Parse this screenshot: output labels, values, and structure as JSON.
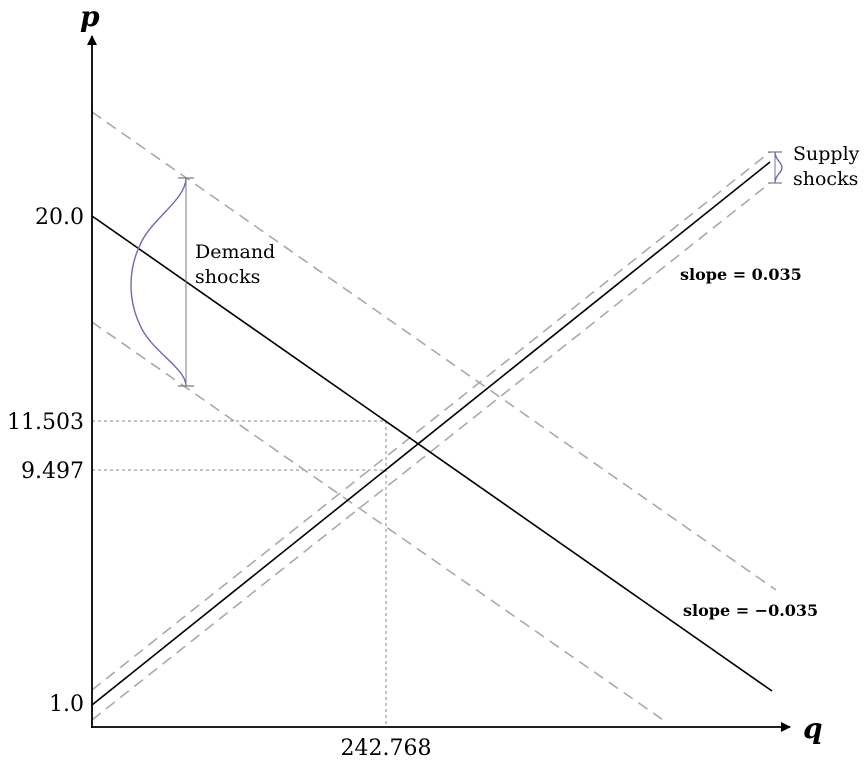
{
  "axes": {
    "x_label": "q",
    "y_label": "p",
    "y_tick_labels": [
      "20.0",
      "11.503",
      "9.497",
      "1.0"
    ],
    "x_tick_labels": [
      "242.768"
    ]
  },
  "annotations": {
    "demand_shocks": [
      "Demand",
      "shocks"
    ],
    "supply_shocks": [
      "Supply",
      "shocks"
    ],
    "supply_slope": "slope = 0.035",
    "demand_slope": "slope = −0.035"
  },
  "colors": {
    "main_line": "#000000",
    "shifted_line": "#a9a9a9",
    "shock_distribution": "#6a6ab8",
    "reference_line": "#888888"
  }
}
